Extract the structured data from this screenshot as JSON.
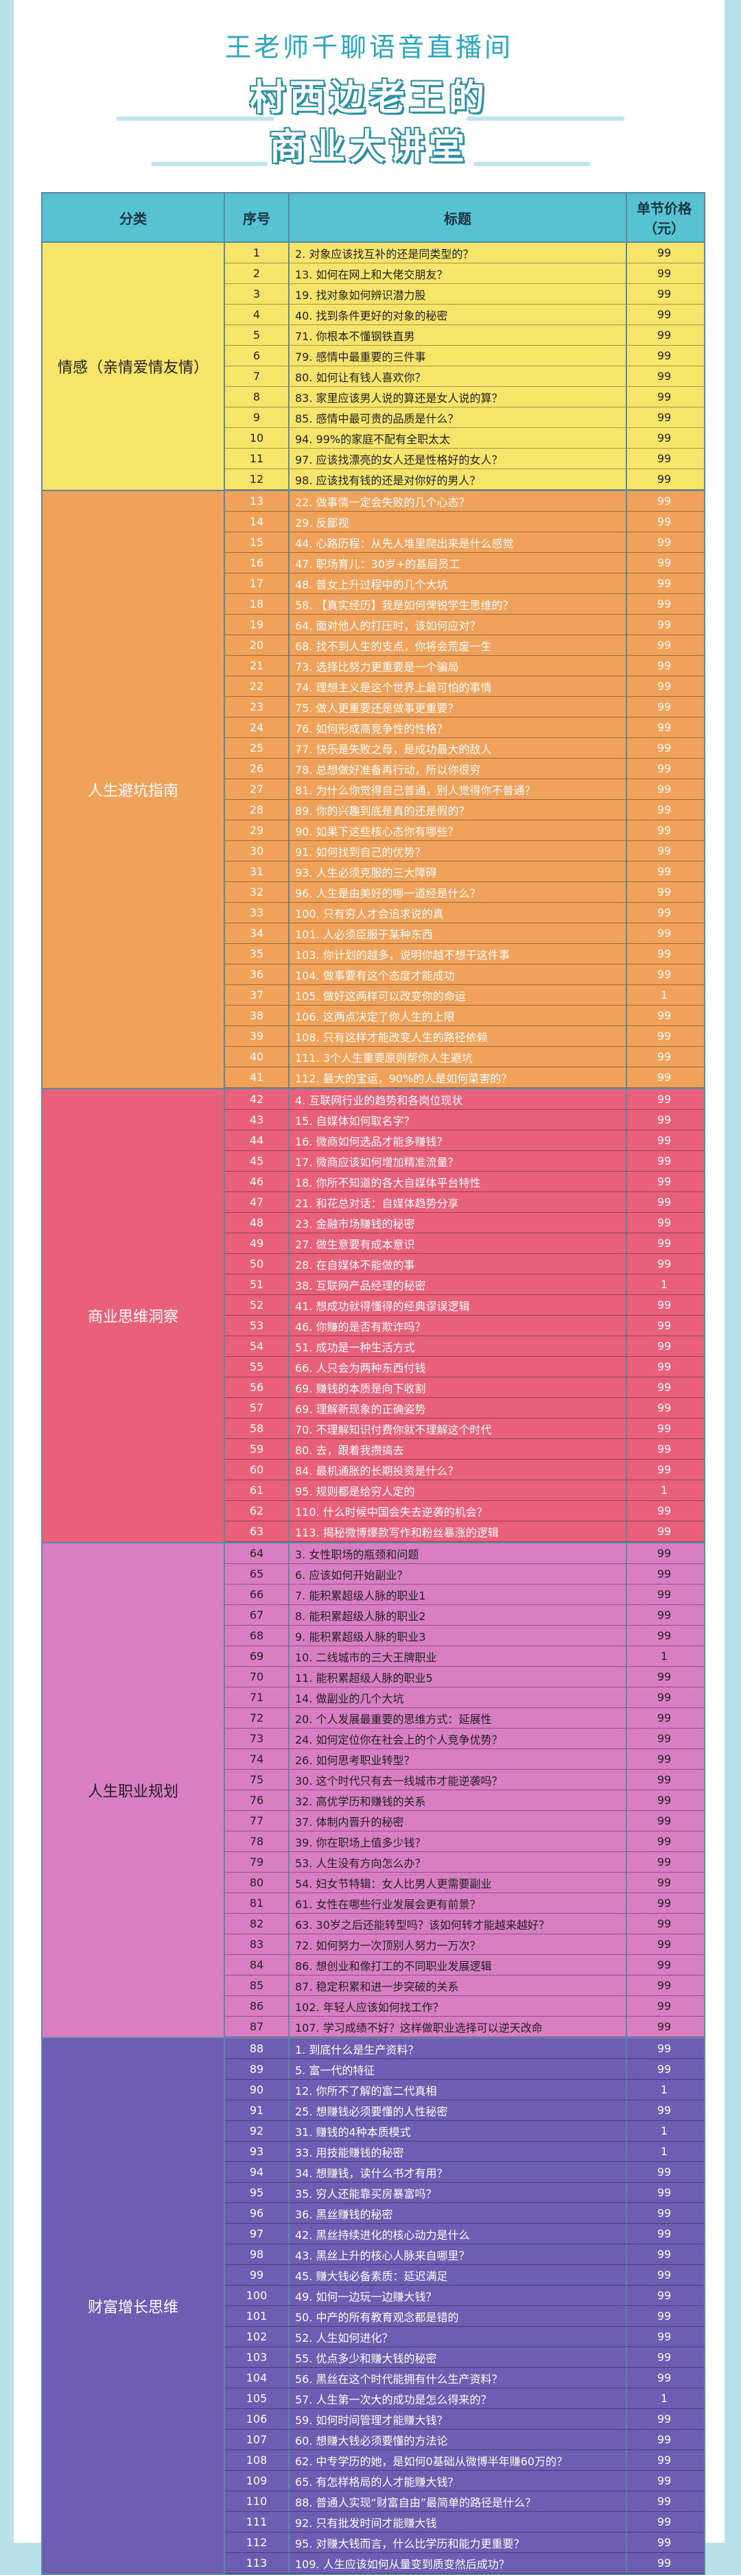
{
  "header": {
    "kicker": "王老师千聊语音直播间",
    "title_line1": "村西边老王的",
    "title_line2": "商业大讲堂"
  },
  "table": {
    "columns": [
      "分类",
      "序号",
      "标题",
      "单节价格\n（元）"
    ],
    "groups": [
      {
        "category": "情感（亲情爱情友情）",
        "color": "#f7e46a",
        "light": false,
        "rows": [
          [
            "1",
            "2. 对象应该找互补的还是同类型的？",
            "99"
          ],
          [
            "2",
            "13. 如何在网上和大佬交朋友？",
            "99"
          ],
          [
            "3",
            "19. 找对象如何辨识潜力股",
            "99"
          ],
          [
            "4",
            "40. 找到条件更好的对象的秘密",
            "99"
          ],
          [
            "5",
            "71. 你根本不懂钢铁直男",
            "99"
          ],
          [
            "6",
            "79. 感情中最重要的三件事",
            "99"
          ],
          [
            "7",
            "80. 如何让有钱人喜欢你？",
            "99"
          ],
          [
            "8",
            "83. 家里应该男人说的算还是女人说的算？",
            "99"
          ],
          [
            "9",
            "85. 感情中最可贵的品质是什么？",
            "99"
          ],
          [
            "10",
            "94. 99%的家庭不配有全职太太",
            "99"
          ],
          [
            "11",
            "97. 应该找漂亮的女人还是性格好的女人？",
            "99"
          ],
          [
            "12",
            "98. 应该找有钱的还是对你好的男人？",
            "99"
          ]
        ]
      },
      {
        "category": "人生避坑指南",
        "color": "#f0a25a",
        "light": true,
        "rows": [
          [
            "13",
            "22. 做事情一定会失败的几个心态？",
            "99"
          ],
          [
            "14",
            "29. 反鄙视",
            "99"
          ],
          [
            "15",
            "44. 心路历程：从先人堆里爬出来是什么感觉",
            "99"
          ],
          [
            "16",
            "47. 职场育儿：30岁+的基层员工",
            "99"
          ],
          [
            "17",
            "48. 普女上升过程中的几个大坑",
            "99"
          ],
          [
            "18",
            "58. 【真实经历】我是如何俾锐学生思维的？",
            "99"
          ],
          [
            "19",
            "64. 面对他人的打压时，该如何应对？",
            "99"
          ],
          [
            "20",
            "68. 找不到人生的支点，你将会荒废一生",
            "99"
          ],
          [
            "21",
            "73. 选择比努力更重要是一个骗局",
            "99"
          ],
          [
            "22",
            "74. 理想主义是这个世界上最可怕的事情",
            "99"
          ],
          [
            "23",
            "75. 做人更重要还是做事更重要？",
            "99"
          ],
          [
            "24",
            "76. 如何形成高竞争性的性格？",
            "99"
          ],
          [
            "25",
            "77. 快乐是失败之母，是成功最大的敌人",
            "99"
          ],
          [
            "26",
            "78. 总想做好准备再行动，所以你很穷",
            "99"
          ],
          [
            "27",
            "81. 为什么你觉得自己普通，别人觉得你不普通？",
            "99"
          ],
          [
            "28",
            "89. 你的兴趣到底是真的还是假的？",
            "99"
          ],
          [
            "29",
            "90. 如果下这些核心态你有哪些？",
            "99"
          ],
          [
            "30",
            "91. 如何找到自己的优势？",
            "99"
          ],
          [
            "31",
            "93. 人生必须克服的三大障碍",
            "99"
          ],
          [
            "32",
            "96. 人生是由美好的哪一道经是什么？",
            "99"
          ],
          [
            "33",
            "100. 只有穷人才会追求说的真",
            "99"
          ],
          [
            "34",
            "101. 人必须臣服于某种东西",
            "99"
          ],
          [
            "35",
            "103. 你计划的越多，说明你越不想干这件事",
            "99"
          ],
          [
            "36",
            "104. 做事要有这个态度才能成功",
            "99"
          ],
          [
            "37",
            "105. 做好这两样可以改变你的命运",
            "1"
          ],
          [
            "38",
            "106. 这两点决定了你人生的上限",
            "99"
          ],
          [
            "39",
            "108. 只有这样才能改变人生的路径依赖",
            "99"
          ],
          [
            "40",
            "111. 3个人生重要原则帮你人生避坑",
            "99"
          ],
          [
            "41",
            "112. 最大的宝运，90%的人是如何菜害的？",
            "99"
          ]
        ]
      },
      {
        "category": "商业思维洞察",
        "color": "#e8607a",
        "light": true,
        "rows": [
          [
            "42",
            "4. 互联网行业的趋势和各岗位现状",
            "99"
          ],
          [
            "43",
            "15. 自媒体如何取名字？",
            "99"
          ],
          [
            "44",
            "16. 微商如何选品才能多赚钱？",
            "99"
          ],
          [
            "45",
            "17. 微商应该如何增加精准流量？",
            "99"
          ],
          [
            "46",
            "18. 你所不知道的各大自媒体平台特性",
            "99"
          ],
          [
            "47",
            "21. 和花总对话：自媒体趋势分享",
            "99"
          ],
          [
            "48",
            "23. 金融市场赚钱的秘密",
            "99"
          ],
          [
            "49",
            "27. 做生意要有成本意识",
            "99"
          ],
          [
            "50",
            "28. 在自媒体不能做的事",
            "99"
          ],
          [
            "51",
            "38. 互联网产品经理的秘密",
            "1"
          ],
          [
            "52",
            "41. 想成功就得懂得的经典谬误逻辑",
            "99"
          ],
          [
            "53",
            "46. 你赚的是否有欺诈吗？",
            "99"
          ],
          [
            "54",
            "51. 成功是一种生活方式",
            "99"
          ],
          [
            "55",
            "66. 人只会为两种东西付钱",
            "99"
          ],
          [
            "56",
            "69. 赚钱的本质是向下收割",
            "99"
          ],
          [
            "57",
            "69. 理解新现象的正确姿势",
            "99"
          ],
          [
            "58",
            "70. 不理解知识付费你就不理解这个时代",
            "99"
          ],
          [
            "59",
            "80. 去，跟着我攒搞去",
            "99"
          ],
          [
            "60",
            "84. 最机通胀的长期投资是什么？",
            "99"
          ],
          [
            "61",
            "95. 规则都是给穷人定的",
            "1"
          ],
          [
            "62",
            "110. 什么时候中国会失去逆袭的机会？",
            "99"
          ],
          [
            "63",
            "113. 揭秘微博爆款写作和粉丝暴涨的逻辑",
            "99"
          ]
        ]
      },
      {
        "category": "人生职业规划",
        "color": "#d97ec4",
        "light": false,
        "rows": [
          [
            "64",
            "3. 女性职场的瓶颈和问题",
            "99"
          ],
          [
            "65",
            "6. 应该如何开始副业？",
            "99"
          ],
          [
            "66",
            "7. 能积累超级人脉的职业1",
            "99"
          ],
          [
            "67",
            "8. 能积累超级人脉的职业2",
            "99"
          ],
          [
            "68",
            "9. 能积累超级人脉的职业3",
            "99"
          ],
          [
            "69",
            "10. 二线城市的三大王牌职业",
            "1"
          ],
          [
            "70",
            "11. 能积累超级人脉的职业5",
            "99"
          ],
          [
            "71",
            "14. 做副业的几个大坑",
            "99"
          ],
          [
            "72",
            "20. 个人发展最重要的思维方式：延展性",
            "99"
          ],
          [
            "73",
            "24. 如何定位你在社会上的个人竞争优势？",
            "99"
          ],
          [
            "74",
            "26. 如何思考职业转型？",
            "99"
          ],
          [
            "75",
            "30. 这个时代只有去一线城市才能逆袭吗？",
            "99"
          ],
          [
            "76",
            "32. 高优学历和赚钱的关系",
            "99"
          ],
          [
            "77",
            "37. 体制内晋升的秘密",
            "99"
          ],
          [
            "78",
            "39. 你在职场上值多少钱？",
            "99"
          ],
          [
            "79",
            "53. 人生没有方向怎么办？",
            "99"
          ],
          [
            "80",
            "54. 妇女节特辑：女人比男人更需要副业",
            "99"
          ],
          [
            "81",
            "61. 女性在哪些行业发展会更有前景？",
            "99"
          ],
          [
            "82",
            "63. 30岁之后还能转型吗？该如何转才能越来越好？",
            "99"
          ],
          [
            "83",
            "72. 如何努力一次顶别人努力一万次？",
            "99"
          ],
          [
            "84",
            "86. 想创业和像打工的不同职业发展逻辑",
            "99"
          ],
          [
            "85",
            "87. 稳定积累和进一步突破的关系",
            "99"
          ],
          [
            "86",
            "102. 年轻人应该如何找工作？",
            "99"
          ],
          [
            "87",
            "107. 学习成绩不好？这样做职业选择可以逆天改命",
            "99"
          ]
        ]
      },
      {
        "category": "财富增长思维",
        "color": "#6d5db3",
        "light": true,
        "rows": [
          [
            "88",
            "1. 到底什么是生产资料？",
            "99"
          ],
          [
            "89",
            "5. 富一代的特征",
            "99"
          ],
          [
            "90",
            "12. 你所不了解的富二代真相",
            "1"
          ],
          [
            "91",
            "25. 想赚钱必须要懂的人性秘密",
            "99"
          ],
          [
            "92",
            "31. 赚钱的4种本质模式",
            "1"
          ],
          [
            "93",
            "33. 用技能赚钱的秘密",
            "1"
          ],
          [
            "94",
            "34. 想赚钱，读什么书才有用？",
            "99"
          ],
          [
            "95",
            "35. 穷人还能靠买房暴富吗？",
            "99"
          ],
          [
            "96",
            "36. 黑丝赚钱的秘密",
            "99"
          ],
          [
            "97",
            "42. 黑丝持续进化的核心动力是什么",
            "99"
          ],
          [
            "98",
            "43. 黑丝上升的核心人脉来自哪里？",
            "99"
          ],
          [
            "99",
            "45. 赚大钱必备素质：延迟满足",
            "99"
          ],
          [
            "100",
            "49. 如何一边玩一边赚大钱？",
            "99"
          ],
          [
            "101",
            "50. 中产的所有教育观念都是错的",
            "99"
          ],
          [
            "102",
            "52. 人生如何进化？",
            "99"
          ],
          [
            "103",
            "55. 优点多少和赚大钱的秘密",
            "99"
          ],
          [
            "104",
            "56. 黑丝在这个时代能拥有什么生产资料？",
            "99"
          ],
          [
            "105",
            "57. 人生第一次大的成功是怎么得来的？",
            "1"
          ],
          [
            "106",
            "59. 如何时间管理才能赚大钱？",
            "99"
          ],
          [
            "107",
            "60. 想赚大钱必须要懂的方法论",
            "99"
          ],
          [
            "108",
            "62. 中专学历的她，是如何0基础从微博半年赚60万的？",
            "99"
          ],
          [
            "109",
            "65. 有怎样格局的人才能赚大钱？",
            "99"
          ],
          [
            "110",
            "88. 普通人实现“财富自由”最简单的路径是什么？",
            "99"
          ],
          [
            "111",
            "92. 只有批发时间才能赚大钱",
            "99"
          ],
          [
            "112",
            "95. 对赚大钱而言，什么比学历和能力更重要？",
            "99"
          ],
          [
            "113",
            "109. 人生应该如何从量变到质变然后成功？",
            "99"
          ]
        ]
      }
    ]
  }
}
